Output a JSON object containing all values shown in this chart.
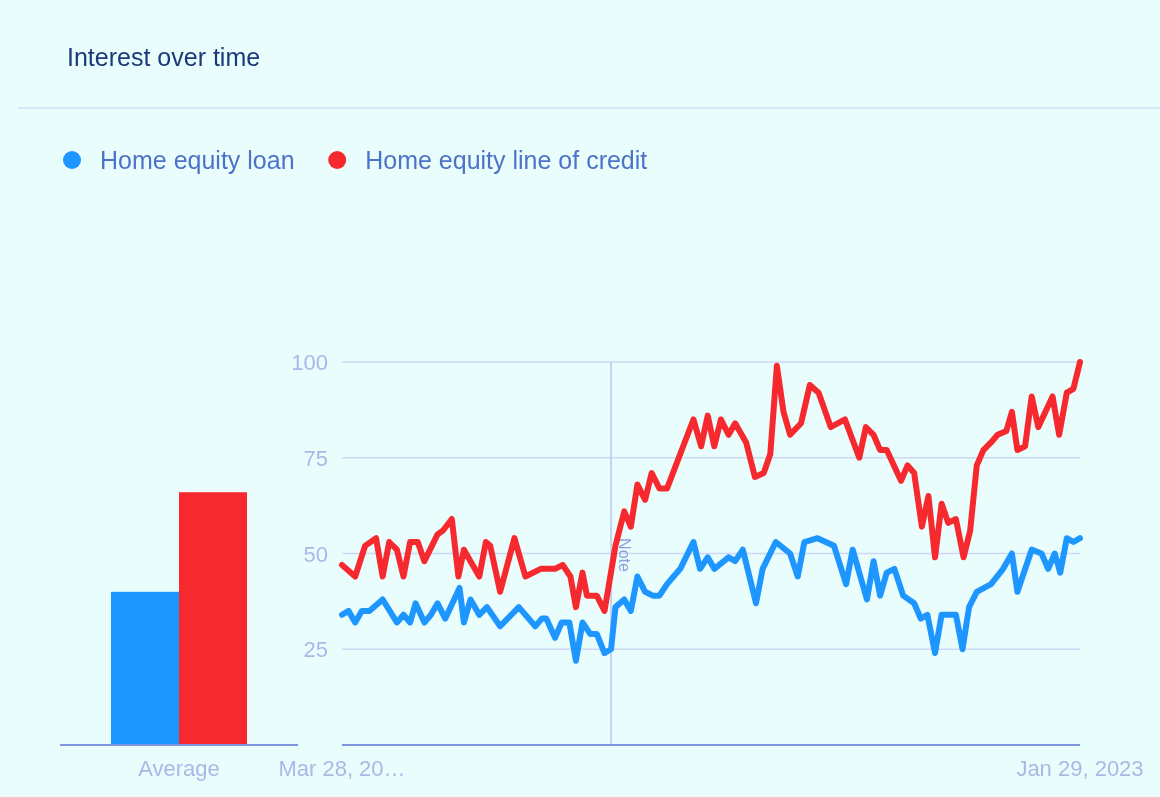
{
  "chart_data": [
    {
      "type": "bar",
      "title": "Interest over time",
      "categories": [
        "Average"
      ],
      "ylim": [
        0,
        100
      ],
      "tick_labels": "x",
      "series": [
        {
          "color": "#1e96ff",
          "values": [
            40
          ]
        },
        {
          "color": "#f62a2e",
          "values": [
            66
          ]
        }
      ]
    },
    {
      "type": "line",
      "legend": "top",
      "grid": "y",
      "ylim": [
        0,
        100
      ],
      "yticks": [
        25,
        50,
        75,
        100
      ],
      "xlim": [
        "2021-03-28",
        "2023-01-29"
      ],
      "xticks": [
        {
          "value": "2021-03-28",
          "label": "Mar 28, 20…"
        },
        {
          "value": "2023-01-29",
          "label": "Jan 29, 2023"
        }
      ],
      "ref_lines": [
        {
          "axis": "x",
          "value": "2021-11-28",
          "label": "Note"
        }
      ],
      "series": [
        {
          "name": "Home equity loan",
          "color": "#1e96ff",
          "x": [
            "2021-03-28",
            "2021-04-03",
            "2021-04-09",
            "2021-04-15",
            "2021-04-22",
            "2021-05-04",
            "2021-05-17",
            "2021-05-23",
            "2021-05-29",
            "2021-06-03",
            "2021-06-11",
            "2021-06-17",
            "2021-06-23",
            "2021-06-30",
            "2021-07-13",
            "2021-07-17",
            "2021-07-23",
            "2021-07-31",
            "2021-08-07",
            "2021-08-19",
            "2021-09-05",
            "2021-09-20",
            "2021-09-26",
            "2021-09-30",
            "2021-10-08",
            "2021-10-14",
            "2021-10-21",
            "2021-10-27",
            "2021-11-02",
            "2021-11-09",
            "2021-11-15",
            "2021-11-22",
            "2021-11-28",
            "2021-12-02",
            "2021-12-10",
            "2021-12-16",
            "2021-12-22",
            "2021-12-29",
            "2022-01-05",
            "2022-01-11",
            "2022-01-18",
            "2022-01-30",
            "2022-02-11",
            "2022-02-17",
            "2022-02-24",
            "2022-03-02",
            "2022-03-15",
            "2022-03-21",
            "2022-03-28",
            "2022-04-09",
            "2022-04-15",
            "2022-04-27",
            "2022-05-10",
            "2022-05-17",
            "2022-05-23",
            "2022-06-04",
            "2022-06-19",
            "2022-06-30",
            "2022-07-06",
            "2022-07-19",
            "2022-07-25",
            "2022-07-31",
            "2022-08-06",
            "2022-08-13",
            "2022-08-21",
            "2022-08-31",
            "2022-09-06",
            "2022-09-12",
            "2022-09-19",
            "2022-09-25",
            "2022-10-08",
            "2022-10-14",
            "2022-10-20",
            "2022-10-27",
            "2022-11-09",
            "2022-11-20",
            "2022-11-28",
            "2022-12-03",
            "2022-12-16",
            "2022-12-25",
            "2022-12-31",
            "2023-01-06",
            "2023-01-11",
            "2023-01-17",
            "2023-01-23",
            "2023-01-29"
          ],
          "values": [
            34,
            35,
            32,
            35,
            35,
            38,
            32,
            34,
            32,
            37,
            32,
            34,
            37,
            33,
            41,
            32,
            38,
            34,
            36,
            31,
            36,
            31,
            33,
            33,
            28,
            32,
            32,
            22,
            32,
            29,
            29,
            24,
            25,
            36,
            38,
            35,
            44,
            40,
            39,
            39,
            42,
            46,
            53,
            46,
            49,
            46,
            49,
            48,
            51,
            37,
            46,
            53,
            50,
            44,
            53,
            54,
            52,
            42,
            51,
            38,
            48,
            39,
            45,
            46,
            39,
            37,
            33,
            34,
            24,
            34,
            34,
            25,
            36,
            40,
            42,
            46,
            50,
            40,
            51,
            50,
            46,
            50,
            45,
            54,
            53,
            54
          ]
        },
        {
          "name": "Home equity line of credit",
          "color": "#f62a2e",
          "x": [
            "2021-03-28",
            "2021-04-09",
            "2021-04-18",
            "2021-04-28",
            "2021-05-04",
            "2021-05-10",
            "2021-05-17",
            "2021-05-23",
            "2021-05-29",
            "2021-06-05",
            "2021-06-11",
            "2021-06-23",
            "2021-06-28",
            "2021-07-06",
            "2021-07-12",
            "2021-07-17",
            "2021-07-31",
            "2021-08-06",
            "2021-08-10",
            "2021-08-19",
            "2021-09-01",
            "2021-09-11",
            "2021-09-25",
            "2021-10-08",
            "2021-10-15",
            "2021-10-22",
            "2021-10-27",
            "2021-11-02",
            "2021-11-06",
            "2021-11-15",
            "2021-11-22",
            "2021-12-02",
            "2021-12-10",
            "2021-12-16",
            "2021-12-22",
            "2021-12-29",
            "2022-01-04",
            "2022-01-11",
            "2022-01-18",
            "2022-02-11",
            "2022-02-18",
            "2022-02-24",
            "2022-03-02",
            "2022-03-08",
            "2022-03-15",
            "2022-03-21",
            "2022-03-31",
            "2022-04-08",
            "2022-04-16",
            "2022-04-22",
            "2022-04-28",
            "2022-05-04",
            "2022-05-10",
            "2022-05-20",
            "2022-05-28",
            "2022-06-05",
            "2022-06-16",
            "2022-06-29",
            "2022-07-12",
            "2022-07-18",
            "2022-07-25",
            "2022-07-31",
            "2022-08-06",
            "2022-08-19",
            "2022-08-25",
            "2022-08-31",
            "2022-09-07",
            "2022-09-13",
            "2022-09-19",
            "2022-09-25",
            "2022-10-01",
            "2022-10-08",
            "2022-10-15",
            "2022-10-21",
            "2022-10-27",
            "2022-11-02",
            "2022-11-09",
            "2022-11-15",
            "2022-11-23",
            "2022-11-28",
            "2022-12-03",
            "2022-12-10",
            "2022-12-16",
            "2022-12-22",
            "2023-01-04",
            "2023-01-10",
            "2023-01-17",
            "2023-01-23",
            "2023-01-29"
          ],
          "values": [
            47,
            44,
            52,
            54,
            44,
            53,
            51,
            44,
            53,
            53,
            48,
            55,
            56,
            59,
            44,
            51,
            44,
            53,
            52,
            40,
            54,
            44,
            46,
            46,
            47,
            44,
            36,
            45,
            39,
            39,
            35,
            52,
            61,
            57,
            68,
            64,
            71,
            67,
            67,
            85,
            78,
            86,
            78,
            85,
            81,
            84,
            79,
            70,
            71,
            76,
            99,
            87,
            81,
            84,
            94,
            92,
            83,
            85,
            75,
            83,
            81,
            77,
            77,
            69,
            73,
            71,
            57,
            65,
            49,
            63,
            58,
            59,
            49,
            56,
            73,
            77,
            79,
            81,
            82,
            87,
            77,
            78,
            91,
            83,
            91,
            81,
            92,
            93,
            100
          ]
        }
      ]
    }
  ]
}
